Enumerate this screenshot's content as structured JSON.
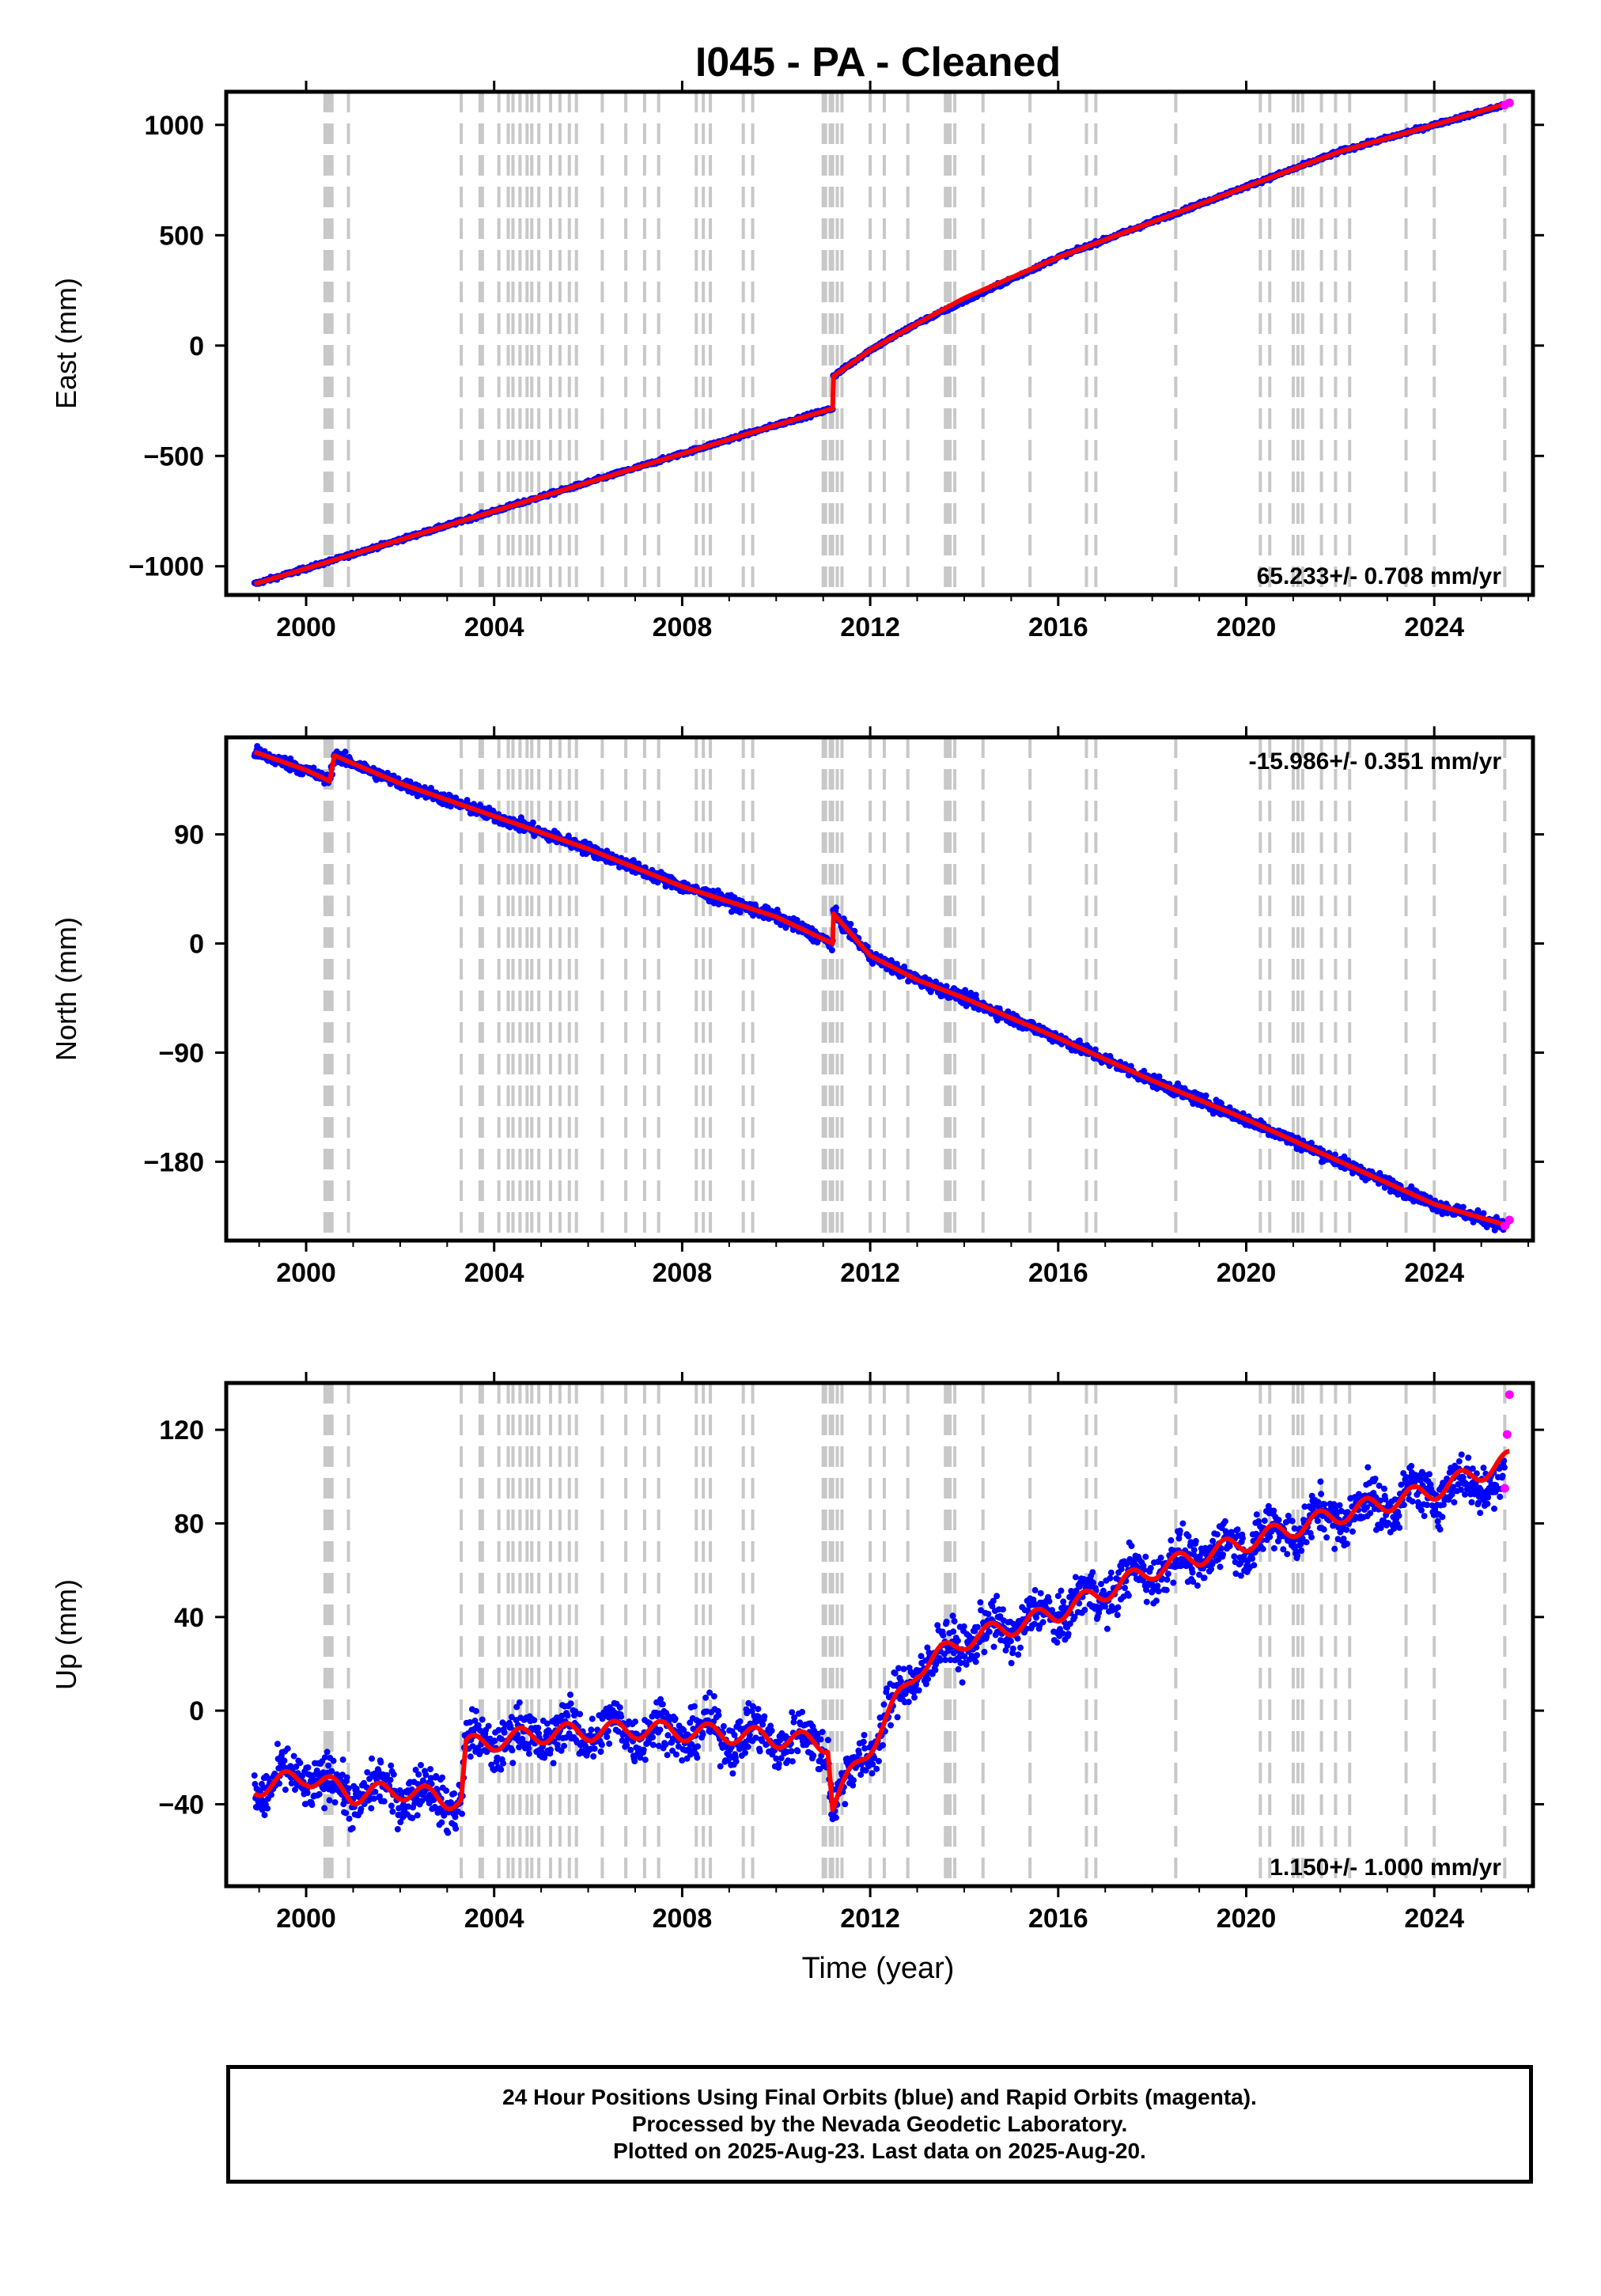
{
  "title": "I045  - PA - Cleaned",
  "xlabel": "Time (year)",
  "colors": {
    "final_orbits": "#0000ff",
    "rapid_orbits": "#ff00ff",
    "model": "#ff0000",
    "steps": "#c8c8c8"
  },
  "footer": {
    "line1": "24 Hour Positions Using Final Orbits (blue) and Rapid Orbits (magenta).",
    "line2": "Processed by the Nevada Geodetic Laboratory.",
    "line3": "Plotted on 2025-Aug-23. Last data on 2025-Aug-20."
  },
  "chart_data": [
    {
      "type": "scatter",
      "component": "east",
      "ylabel": "East (mm)",
      "rate_label": "65.233+/- 0.708 mm/yr",
      "rate_position": "bottom-right",
      "xlim": [
        1998.3,
        2026.1
      ],
      "ylim": [
        -1130,
        1150
      ],
      "x_ticks": [
        2000,
        2004,
        2008,
        2012,
        2016,
        2020,
        2024
      ],
      "y_ticks": [
        -1000,
        -500,
        0,
        500,
        1000
      ],
      "series": [
        {
          "color": "#0000ff",
          "x": [
            1998.9,
            2000,
            2002,
            2004,
            2006,
            2008,
            2010,
            2011.2,
            2011.21,
            2012,
            2013,
            2014,
            2016,
            2018,
            2020,
            2022,
            2024,
            2025.5
          ],
          "y": [
            -1080,
            -1010,
            -880,
            -750,
            -620,
            -490,
            -360,
            -285,
            -140,
            -20,
            100,
            200,
            400,
            560,
            720,
            880,
            1000,
            1090
          ]
        },
        {
          "color": "#ff0000",
          "x": [
            1998.9,
            2000,
            2002,
            2004,
            2006,
            2008,
            2010,
            2011.2,
            2011.21,
            2012,
            2013,
            2014,
            2016,
            2018,
            2020,
            2022,
            2024,
            2025.6
          ],
          "y": [
            -1080,
            -1010,
            -880,
            -750,
            -620,
            -490,
            -360,
            -285,
            -140,
            -20,
            100,
            215,
            400,
            560,
            720,
            880,
            1000,
            1100
          ]
        },
        {
          "color": "#ff00ff",
          "x": [
            2025.5,
            2025.6
          ],
          "y": [
            1090,
            1100
          ]
        }
      ]
    },
    {
      "type": "scatter",
      "component": "north",
      "ylabel": "North (mm)",
      "rate_label": "-15.986+/- 0.351 mm/yr",
      "rate_position": "top-right",
      "xlim": [
        1998.3,
        2026.1
      ],
      "ylim": [
        -245,
        170
      ],
      "x_ticks": [
        2000,
        2004,
        2008,
        2012,
        2016,
        2020,
        2024
      ],
      "y_ticks": [
        -180,
        -90,
        0,
        90
      ],
      "series": [
        {
          "color": "#0000ff",
          "x": [
            1998.9,
            2000,
            2000.5,
            2000.6,
            2002,
            2004,
            2006,
            2008,
            2010,
            2011.2,
            2011.21,
            2012,
            2013,
            2014,
            2016,
            2018,
            2020,
            2022,
            2024,
            2025.5
          ],
          "y": [
            158,
            143,
            134,
            155,
            132,
            105,
            78,
            47,
            22,
            0,
            25,
            -10,
            -30,
            -45,
            -78,
            -113,
            -145,
            -180,
            -215,
            -233
          ]
        },
        {
          "color": "#ff0000",
          "x": [
            1998.9,
            2000,
            2000.5,
            2000.6,
            2002,
            2004,
            2006,
            2008,
            2010,
            2011.2,
            2011.21,
            2012,
            2013,
            2014,
            2016,
            2018,
            2020,
            2022,
            2024,
            2025.6
          ],
          "y": [
            158,
            143,
            134,
            155,
            132,
            105,
            78,
            47,
            22,
            0,
            25,
            -10,
            -30,
            -45,
            -78,
            -113,
            -145,
            -180,
            -215,
            -233
          ]
        },
        {
          "color": "#ff00ff",
          "x": [
            2025.5,
            2025.6
          ],
          "y": [
            -233,
            -228
          ]
        }
      ]
    },
    {
      "type": "scatter",
      "component": "up",
      "ylabel": "Up (mm)",
      "rate_label": "1.150+/- 1.000 mm/yr",
      "rate_position": "bottom-right",
      "xlim": [
        1998.3,
        2026.1
      ],
      "ylim": [
        -75,
        140
      ],
      "x_ticks": [
        2000,
        2004,
        2008,
        2012,
        2016,
        2020,
        2024
      ],
      "y_ticks": [
        -40,
        0,
        40,
        80,
        120
      ],
      "series": [
        {
          "color": "#0000ff",
          "x": [
            1998.9,
            2000,
            2001,
            2002,
            2003,
            2003.3,
            2003.4,
            2005,
            2007,
            2009,
            2011.1,
            2011.2,
            2012,
            2013,
            2014,
            2016,
            2018,
            2020,
            2022,
            2024,
            2025.5
          ],
          "y": [
            -33,
            -28,
            -36,
            -34,
            -38,
            -38,
            -15,
            -10,
            -8,
            -10,
            -14,
            -40,
            -15,
            18,
            30,
            42,
            60,
            72,
            84,
            94,
            100
          ]
        },
        {
          "color": "#ff0000",
          "x": [
            1998.9,
            2000,
            2001,
            2002,
            2003,
            2003.3,
            2003.4,
            2005,
            2007,
            2009,
            2011.1,
            2011.2,
            2012,
            2013,
            2014,
            2016,
            2018,
            2020,
            2022,
            2024,
            2025.6
          ],
          "y": [
            -33,
            -28,
            -36,
            -34,
            -38,
            -38,
            -15,
            -10,
            -8,
            -10,
            -14,
            -40,
            -15,
            18,
            30,
            42,
            60,
            72,
            84,
            94,
            107
          ]
        },
        {
          "color": "#ff00ff",
          "x": [
            2025.5,
            2025.55,
            2025.6
          ],
          "y": [
            95,
            118,
            135
          ]
        }
      ]
    }
  ],
  "step_epochs": [
    2000.4,
    2000.45,
    2000.5,
    2000.55,
    2000.9,
    2003.3,
    2003.7,
    2003.75,
    2004.1,
    2004.3,
    2004.4,
    2004.55,
    2004.7,
    2004.8,
    2004.95,
    2005.2,
    2005.4,
    2005.6,
    2005.75,
    2006.3,
    2006.8,
    2007.2,
    2007.5,
    2008.3,
    2008.45,
    2008.6,
    2009.3,
    2009.5,
    2011.0,
    2011.05,
    2011.15,
    2011.2,
    2011.3,
    2011.4,
    2012.0,
    2012.3,
    2012.8,
    2013.6,
    2013.65,
    2013.7,
    2013.8,
    2014.4,
    2015.4,
    2016.6,
    2016.8,
    2018.5,
    2020.3,
    2020.5,
    2021.0,
    2021.1,
    2021.2,
    2021.6,
    2021.9,
    2022.2,
    2023.4,
    2024.0,
    2025.5
  ]
}
